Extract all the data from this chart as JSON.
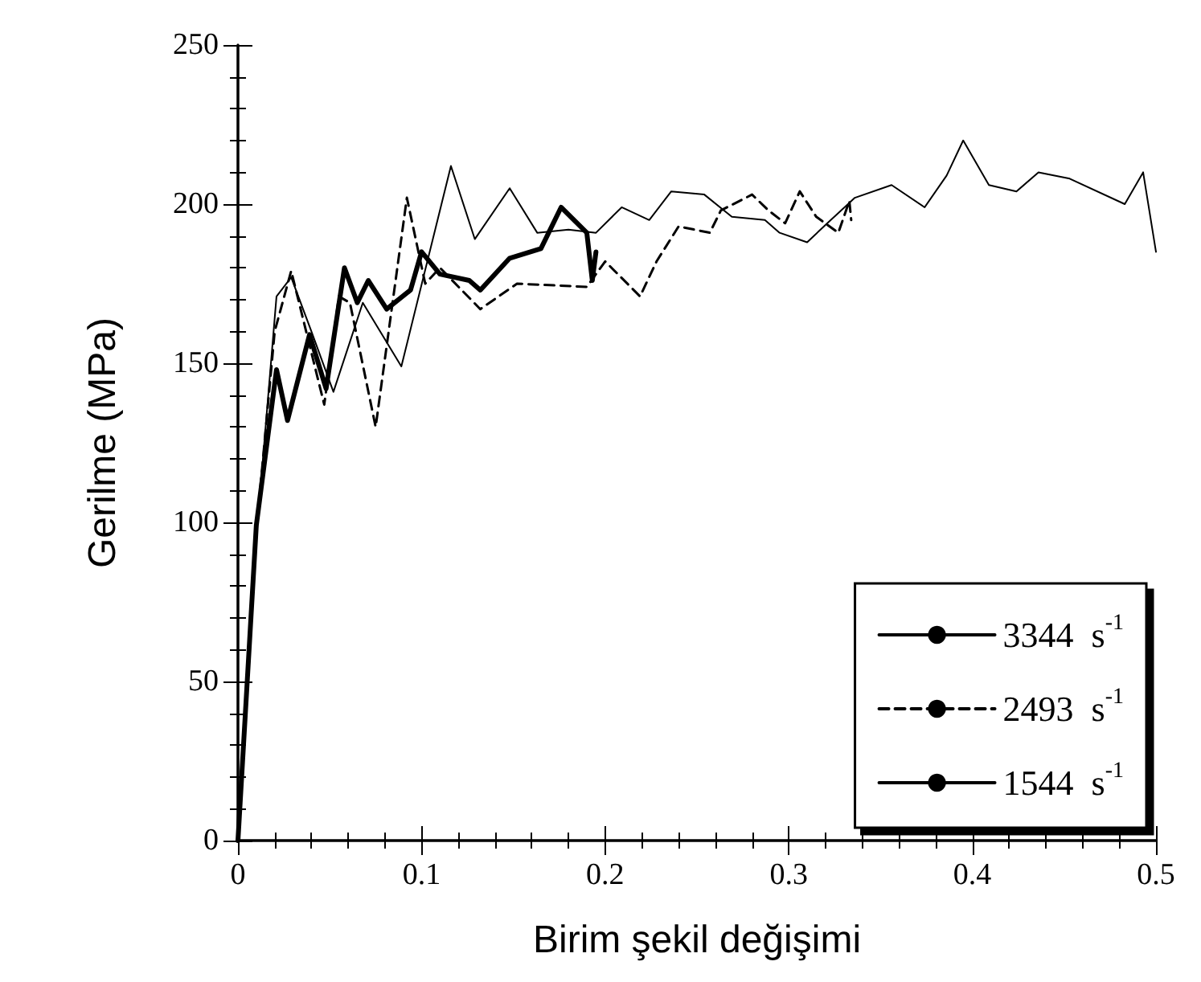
{
  "chart_data": {
    "type": "line",
    "xlabel": "Birim şekil değişimi",
    "ylabel": "Gerilme (MPa)",
    "xlim": [
      0,
      0.5
    ],
    "xticks": [
      0,
      0.1,
      0.2,
      0.3,
      0.4,
      0.5
    ],
    "ylim": [
      0,
      250
    ],
    "yticks": [
      0,
      50,
      100,
      150,
      200,
      250
    ],
    "grid": false,
    "legend": "bottom right",
    "marker": "none",
    "series": [
      {
        "name": "3344  s$^{-1}$",
        "color": "#000000",
        "line_style": "solid",
        "x": [
          0,
          0.01,
          0.021,
          0.029,
          0.04,
          0.052,
          0.068,
          0.089,
          0.116,
          0.129,
          0.148,
          0.163,
          0.18,
          0.195,
          0.209,
          0.224,
          0.236,
          0.254,
          0.269,
          0.287,
          0.295,
          0.31,
          0.321,
          0.336,
          0.356,
          0.374,
          0.386,
          0.395,
          0.409,
          0.424,
          0.436,
          0.453,
          0.483,
          0.493,
          0.5
        ],
        "values": [
          0,
          95,
          171,
          177,
          160,
          141,
          169,
          149,
          212,
          189,
          205,
          191,
          192,
          191,
          199,
          195,
          204,
          203,
          196,
          195,
          191,
          188,
          194,
          202,
          206,
          199,
          209,
          220,
          206,
          204,
          210,
          208,
          200,
          210,
          185
        ]
      },
      {
        "name": "2493  s$^{-1}$",
        "color": "#000000",
        "line_style": "dashed",
        "x": [
          0,
          0.01,
          0.02,
          0.029,
          0.047,
          0.055,
          0.061,
          0.075,
          0.092,
          0.102,
          0.11,
          0.132,
          0.152,
          0.19,
          0.2,
          0.219,
          0.228,
          0.24,
          0.257,
          0.263,
          0.28,
          0.289,
          0.298,
          0.306,
          0.315,
          0.327,
          0.333,
          0.334
        ],
        "values": [
          0,
          97,
          160,
          179,
          137,
          171,
          169,
          130,
          202,
          175,
          180,
          167,
          175,
          174,
          182,
          171,
          182,
          193,
          191,
          198,
          203,
          198,
          194,
          204,
          196,
          191,
          201,
          195
        ]
      },
      {
        "name": "1544  s$^{-1}$",
        "color": "#000000",
        "line_style": "solid",
        "x": [
          0,
          0.01,
          0.021,
          0.027,
          0.039,
          0.048,
          0.058,
          0.065,
          0.071,
          0.081,
          0.094,
          0.1,
          0.11,
          0.126,
          0.132,
          0.148,
          0.165,
          0.176,
          0.19,
          0.193,
          0.195
        ],
        "values": [
          0,
          99,
          148,
          132,
          159,
          142,
          180,
          169,
          176,
          167,
          173,
          185,
          178,
          176,
          173,
          183,
          186,
          199,
          191,
          176,
          185
        ]
      }
    ]
  }
}
